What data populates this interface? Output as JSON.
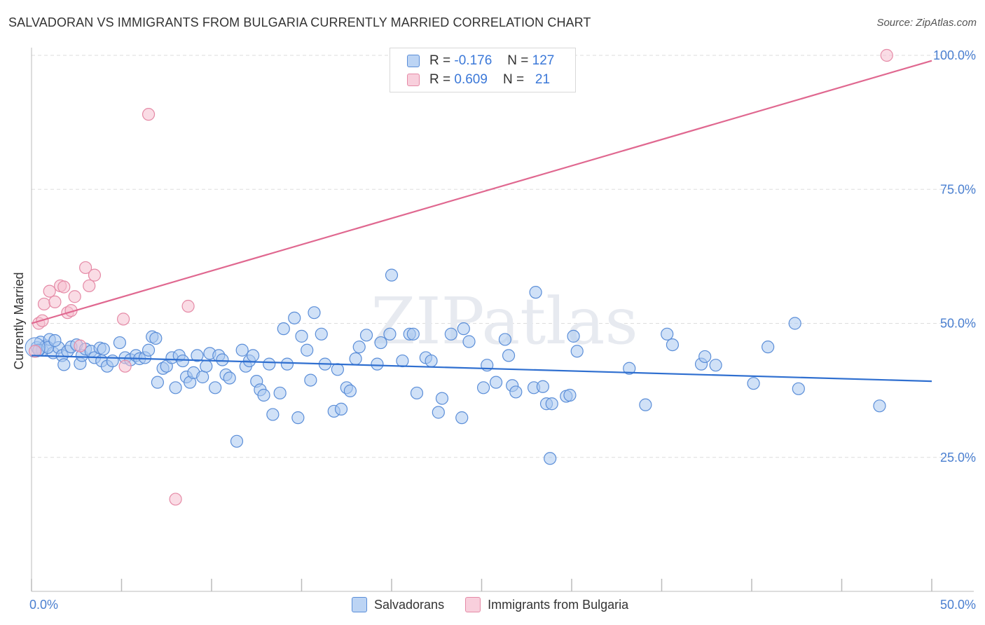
{
  "title": "SALVADORAN VS IMMIGRANTS FROM BULGARIA CURRENTLY MARRIED CORRELATION CHART",
  "source": "Source: ZipAtlas.com",
  "watermark": "ZIPatlas",
  "legend": {
    "series1": {
      "r_label": "R =",
      "r_value": "-0.176",
      "n_label": "N =",
      "n_value": "127"
    },
    "series2": {
      "r_label": "R =",
      "r_value": "0.609",
      "n_label": "N =",
      "n_value": "21"
    }
  },
  "colors": {
    "blue_fill": "#a9c8f0",
    "blue_stroke": "#5b8ed8",
    "blue_line": "#2f6fd0",
    "pink_fill": "#f6bfd0",
    "pink_stroke": "#e58aa6",
    "pink_line": "#e06890",
    "grid": "#dddddd",
    "axis": "#bbbbbb",
    "tick_text": "#4a7fd0"
  },
  "chart_data": {
    "type": "scatter",
    "title": "SALVADORAN VS IMMIGRANTS FROM BULGARIA CURRENTLY MARRIED CORRELATION CHART",
    "xlabel": "",
    "ylabel": "Currently Married",
    "xlim": [
      0,
      50
    ],
    "ylim": [
      0,
      100
    ],
    "x_tick_labels": [
      "0.0%",
      "50.0%"
    ],
    "y_tick_labels": [
      {
        "value": 100,
        "label": "100.0%"
      },
      {
        "value": 75,
        "label": "75.0%"
      },
      {
        "value": 50,
        "label": "50.0%"
      },
      {
        "value": 25,
        "label": "25.0%"
      }
    ],
    "grid": true,
    "series": [
      {
        "name": "Salvadorans",
        "color": "blue",
        "trend": {
          "x0": 0,
          "y0": 44.0,
          "x1": 50,
          "y1": 39.2
        },
        "points": [
          [
            0.3,
            45.5
          ],
          [
            0.5,
            46.5
          ],
          [
            0.6,
            45.0
          ],
          [
            0.8,
            45.8
          ],
          [
            1.0,
            47.0
          ],
          [
            1.2,
            44.5
          ],
          [
            1.5,
            45.5
          ],
          [
            1.7,
            44.0
          ],
          [
            1.8,
            42.3
          ],
          [
            2.0,
            44.8
          ],
          [
            2.2,
            45.6
          ],
          [
            2.5,
            46.0
          ],
          [
            2.7,
            42.5
          ],
          [
            2.8,
            44.0
          ],
          [
            3.0,
            45.2
          ],
          [
            3.3,
            44.8
          ],
          [
            3.5,
            43.6
          ],
          [
            3.8,
            45.4
          ],
          [
            3.9,
            43.0
          ],
          [
            4.0,
            45.2
          ],
          [
            4.2,
            42.0
          ],
          [
            4.5,
            43.0
          ],
          [
            4.9,
            46.4
          ],
          [
            5.2,
            43.6
          ],
          [
            5.5,
            43.2
          ],
          [
            5.8,
            44.0
          ],
          [
            6.0,
            43.4
          ],
          [
            6.3,
            43.6
          ],
          [
            6.5,
            45.0
          ],
          [
            6.7,
            47.5
          ],
          [
            6.9,
            47.2
          ],
          [
            7.0,
            39.0
          ],
          [
            7.3,
            41.6
          ],
          [
            7.5,
            42.0
          ],
          [
            7.8,
            43.6
          ],
          [
            8.0,
            38.0
          ],
          [
            8.2,
            44.0
          ],
          [
            8.4,
            43.0
          ],
          [
            8.6,
            40.0
          ],
          [
            8.8,
            39.0
          ],
          [
            9.0,
            40.8
          ],
          [
            9.2,
            44.0
          ],
          [
            9.5,
            40.0
          ],
          [
            9.7,
            42.0
          ],
          [
            9.9,
            44.4
          ],
          [
            10.2,
            38.0
          ],
          [
            10.4,
            44.0
          ],
          [
            10.6,
            43.2
          ],
          [
            10.8,
            40.4
          ],
          [
            11.0,
            39.8
          ],
          [
            11.4,
            28.0
          ],
          [
            11.7,
            45.0
          ],
          [
            11.9,
            42.0
          ],
          [
            12.1,
            43.0
          ],
          [
            12.3,
            44.0
          ],
          [
            12.5,
            39.2
          ],
          [
            12.7,
            37.6
          ],
          [
            12.9,
            36.6
          ],
          [
            13.2,
            42.4
          ],
          [
            13.4,
            33.0
          ],
          [
            13.8,
            37.0
          ],
          [
            14.0,
            49.0
          ],
          [
            14.2,
            42.4
          ],
          [
            14.6,
            51.0
          ],
          [
            14.8,
            32.4
          ],
          [
            15.0,
            47.6
          ],
          [
            15.3,
            45.0
          ],
          [
            15.5,
            39.4
          ],
          [
            15.7,
            52.0
          ],
          [
            16.1,
            48.0
          ],
          [
            16.3,
            42.4
          ],
          [
            16.8,
            33.6
          ],
          [
            17.0,
            41.4
          ],
          [
            17.2,
            34.0
          ],
          [
            17.5,
            38.0
          ],
          [
            17.7,
            37.4
          ],
          [
            18.0,
            43.4
          ],
          [
            18.2,
            45.6
          ],
          [
            18.6,
            47.8
          ],
          [
            19.2,
            42.4
          ],
          [
            19.4,
            46.4
          ],
          [
            19.9,
            48.0
          ],
          [
            20.0,
            59.0
          ],
          [
            20.6,
            43.0
          ],
          [
            21.0,
            48.0
          ],
          [
            21.2,
            48.0
          ],
          [
            21.4,
            37.0
          ],
          [
            21.9,
            43.6
          ],
          [
            22.2,
            43.0
          ],
          [
            22.6,
            33.4
          ],
          [
            22.8,
            36.0
          ],
          [
            23.3,
            48.0
          ],
          [
            23.9,
            32.4
          ],
          [
            24.0,
            49.0
          ],
          [
            24.3,
            46.6
          ],
          [
            25.1,
            38.0
          ],
          [
            25.3,
            42.2
          ],
          [
            25.8,
            39.0
          ],
          [
            26.3,
            47.0
          ],
          [
            26.5,
            44.0
          ],
          [
            26.7,
            38.4
          ],
          [
            26.9,
            37.2
          ],
          [
            28.0,
            55.8
          ],
          [
            27.9,
            38.0
          ],
          [
            28.4,
            38.2
          ],
          [
            28.6,
            35.0
          ],
          [
            28.8,
            24.8
          ],
          [
            28.9,
            35.0
          ],
          [
            29.7,
            36.4
          ],
          [
            29.9,
            36.6
          ],
          [
            30.1,
            47.6
          ],
          [
            30.3,
            44.8
          ],
          [
            33.2,
            41.6
          ],
          [
            34.1,
            34.8
          ],
          [
            35.3,
            48.0
          ],
          [
            35.6,
            46.0
          ],
          [
            37.2,
            42.4
          ],
          [
            37.4,
            43.8
          ],
          [
            38.0,
            42.2
          ],
          [
            40.1,
            38.8
          ],
          [
            40.9,
            45.6
          ],
          [
            42.4,
            50.0
          ],
          [
            42.6,
            37.8
          ],
          [
            47.1,
            34.6
          ],
          [
            0.4,
            45.0
          ],
          [
            0.9,
            45.5
          ],
          [
            1.3,
            46.8
          ]
        ]
      },
      {
        "name": "Immigrants from Bulgaria",
        "color": "pink",
        "trend": {
          "x0": 0,
          "y0": 50.0,
          "x1": 50,
          "y1": 99.0
        },
        "points": [
          [
            0.2,
            44.8
          ],
          [
            0.4,
            50.0
          ],
          [
            0.6,
            50.5
          ],
          [
            0.7,
            53.6
          ],
          [
            1.0,
            56.0
          ],
          [
            1.3,
            54.0
          ],
          [
            1.6,
            57.0
          ],
          [
            1.8,
            56.8
          ],
          [
            2.0,
            52.0
          ],
          [
            2.2,
            52.4
          ],
          [
            2.4,
            55.0
          ],
          [
            2.7,
            45.8
          ],
          [
            3.0,
            60.4
          ],
          [
            3.2,
            57.0
          ],
          [
            3.5,
            59.0
          ],
          [
            5.1,
            50.8
          ],
          [
            5.2,
            42.0
          ],
          [
            6.5,
            89.0
          ],
          [
            8.0,
            17.2
          ],
          [
            8.7,
            53.2
          ],
          [
            47.5,
            100.0
          ]
        ]
      }
    ]
  },
  "bottom_legend": {
    "series1": "Salvadorans",
    "series2": "Immigrants from Bulgaria"
  }
}
